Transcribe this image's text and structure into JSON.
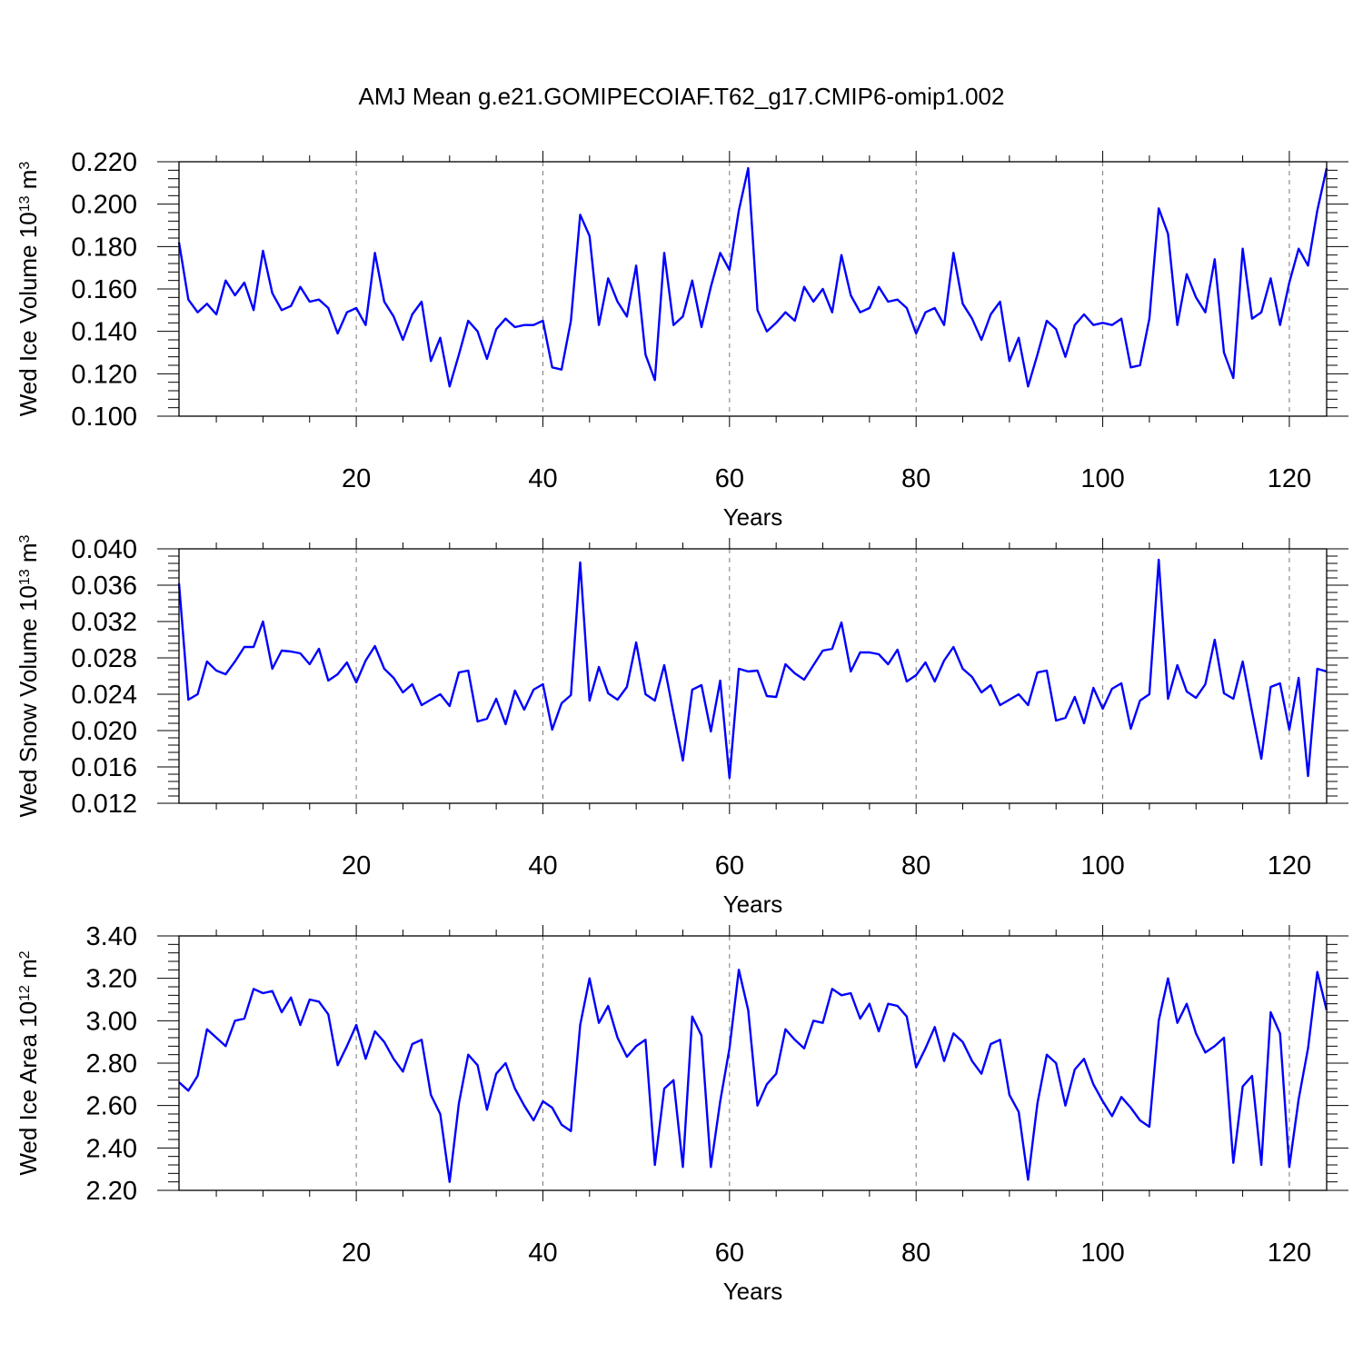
{
  "title": "AMJ Mean g.e21.GOMIPECOIAF.T62_g17.CMIP6-omip1.002",
  "line_color": "#0000ff",
  "chart_data": [
    {
      "type": "line",
      "ylabel": "Wed Ice Volume 10^13 m^3",
      "ylabel_parts": {
        "base": "Wed Ice Volume 10",
        "exp": "13",
        "unit": " m",
        "unit_exp": "3"
      },
      "xlabel": "Years",
      "xlim": [
        1,
        124
      ],
      "ylim": [
        0.1,
        0.22
      ],
      "xticks": [
        20,
        40,
        60,
        80,
        100,
        120
      ],
      "yticks": [
        0.1,
        0.12,
        0.14,
        0.16,
        0.18,
        0.2,
        0.22
      ],
      "ytick_labels": [
        "0.100",
        "0.120",
        "0.140",
        "0.160",
        "0.180",
        "0.200",
        "0.220"
      ],
      "grid": "vertical dashed at major x ticks",
      "series": [
        {
          "values": [
            0.182,
            0.155,
            0.149,
            0.153,
            0.148,
            0.164,
            0.157,
            0.163,
            0.15,
            0.178,
            0.158,
            0.15,
            0.152,
            0.161,
            0.154,
            0.155,
            0.151,
            0.139,
            0.149,
            0.151,
            0.143,
            0.177,
            0.154,
            0.147,
            0.136,
            0.148,
            0.154,
            0.126,
            0.137,
            0.114,
            0.129,
            0.145,
            0.14,
            0.127,
            0.141,
            0.146,
            0.142,
            0.143,
            0.143,
            0.145,
            0.123,
            0.122,
            0.145,
            0.195,
            0.185,
            0.143,
            0.165,
            0.154,
            0.147,
            0.171,
            0.129,
            0.117,
            0.177,
            0.143,
            0.147,
            0.164,
            0.142,
            0.161,
            0.177,
            0.169,
            0.197,
            0.217,
            0.15,
            0.14,
            0.144,
            0.149,
            0.145,
            0.161,
            0.154,
            0.16,
            0.149,
            0.176,
            0.157,
            0.149,
            0.151,
            0.161,
            0.154,
            0.155,
            0.151,
            0.139,
            0.149,
            0.151,
            0.143,
            0.177,
            0.153,
            0.146,
            0.136,
            0.148,
            0.154,
            0.126,
            0.137,
            0.114,
            0.129,
            0.145,
            0.141,
            0.128,
            0.143,
            0.148,
            0.143,
            0.144,
            0.143,
            0.146,
            0.123,
            0.124,
            0.146,
            0.198,
            0.186,
            0.143,
            0.167,
            0.156,
            0.149,
            0.174,
            0.13,
            0.118,
            0.179,
            0.146,
            0.149,
            0.165,
            0.143,
            0.163,
            0.179,
            0.171,
            0.197,
            0.217
          ]
        }
      ]
    },
    {
      "type": "line",
      "ylabel": "Wed Snow Volume 10^13 m^3",
      "ylabel_parts": {
        "base": "Wed Snow Volume 10",
        "exp": "13",
        "unit": " m",
        "unit_exp": "3"
      },
      "xlabel": "Years",
      "xlim": [
        1,
        124
      ],
      "ylim": [
        0.012,
        0.04
      ],
      "xticks": [
        20,
        40,
        60,
        80,
        100,
        120
      ],
      "yticks": [
        0.012,
        0.016,
        0.02,
        0.024,
        0.028,
        0.032,
        0.036,
        0.04
      ],
      "ytick_labels": [
        "0.012",
        "0.016",
        "0.020",
        "0.024",
        "0.028",
        "0.032",
        "0.036",
        "0.040"
      ],
      "grid": "vertical dashed at major x ticks",
      "series": [
        {
          "values": [
            0.0362,
            0.0234,
            0.024,
            0.0276,
            0.0266,
            0.0262,
            0.0276,
            0.0292,
            0.0292,
            0.032,
            0.0268,
            0.0288,
            0.0287,
            0.0285,
            0.0273,
            0.029,
            0.0255,
            0.0262,
            0.0275,
            0.0253,
            0.0277,
            0.0293,
            0.0268,
            0.0258,
            0.0242,
            0.0251,
            0.0228,
            0.0234,
            0.024,
            0.0227,
            0.0264,
            0.0266,
            0.021,
            0.0213,
            0.0235,
            0.0207,
            0.0244,
            0.0223,
            0.0245,
            0.0251,
            0.0201,
            0.023,
            0.0239,
            0.0385,
            0.0233,
            0.027,
            0.0241,
            0.0234,
            0.0248,
            0.0297,
            0.024,
            0.0233,
            0.0272,
            0.0219,
            0.0167,
            0.0245,
            0.025,
            0.0199,
            0.0255,
            0.0148,
            0.0268,
            0.0265,
            0.0266,
            0.0238,
            0.0237,
            0.0273,
            0.0263,
            0.0256,
            0.0272,
            0.0288,
            0.029,
            0.0319,
            0.0265,
            0.0286,
            0.0286,
            0.0284,
            0.0273,
            0.0289,
            0.0254,
            0.0261,
            0.0275,
            0.0254,
            0.0277,
            0.0292,
            0.0268,
            0.0259,
            0.0242,
            0.025,
            0.0228,
            0.0234,
            0.024,
            0.0228,
            0.0264,
            0.0266,
            0.0211,
            0.0214,
            0.0237,
            0.0208,
            0.0247,
            0.0224,
            0.0246,
            0.0252,
            0.0202,
            0.0233,
            0.024,
            0.0388,
            0.0235,
            0.0272,
            0.0243,
            0.0236,
            0.0251,
            0.03,
            0.0241,
            0.0235,
            0.0276,
            0.0221,
            0.0169,
            0.0248,
            0.0252,
            0.0201,
            0.0258,
            0.015,
            0.0268,
            0.0265
          ]
        }
      ]
    },
    {
      "type": "line",
      "ylabel": "Wed Ice Area 10^12 m^2",
      "ylabel_parts": {
        "base": "Wed Ice Area 10",
        "exp": "12",
        "unit": " m",
        "unit_exp": "2"
      },
      "xlabel": "Years",
      "xlim": [
        1,
        124
      ],
      "ylim": [
        2.2,
        3.4
      ],
      "xticks": [
        20,
        40,
        60,
        80,
        100,
        120
      ],
      "yticks": [
        2.2,
        2.4,
        2.6,
        2.8,
        3.0,
        3.2,
        3.4
      ],
      "ytick_labels": [
        "2.20",
        "2.40",
        "2.60",
        "2.80",
        "3.00",
        "3.20",
        "3.40"
      ],
      "grid": "vertical dashed at major x ticks",
      "series": [
        {
          "values": [
            2.71,
            2.67,
            2.74,
            2.96,
            2.92,
            2.88,
            3.0,
            3.01,
            3.15,
            3.13,
            3.14,
            3.04,
            3.11,
            2.98,
            3.1,
            3.09,
            3.03,
            2.79,
            2.88,
            2.98,
            2.82,
            2.95,
            2.9,
            2.82,
            2.76,
            2.89,
            2.91,
            2.65,
            2.56,
            2.24,
            2.61,
            2.84,
            2.79,
            2.58,
            2.75,
            2.8,
            2.68,
            2.6,
            2.53,
            2.62,
            2.59,
            2.51,
            2.48,
            2.98,
            3.2,
            2.99,
            3.07,
            2.92,
            2.83,
            2.88,
            2.91,
            2.32,
            2.68,
            2.72,
            2.31,
            3.02,
            2.93,
            2.31,
            2.62,
            2.87,
            3.24,
            3.05,
            2.6,
            2.7,
            2.75,
            2.96,
            2.91,
            2.87,
            3.0,
            2.99,
            3.15,
            3.12,
            3.13,
            3.01,
            3.08,
            2.95,
            3.08,
            3.07,
            3.02,
            2.78,
            2.87,
            2.97,
            2.81,
            2.94,
            2.9,
            2.81,
            2.75,
            2.89,
            2.91,
            2.65,
            2.57,
            2.25,
            2.61,
            2.84,
            2.8,
            2.6,
            2.77,
            2.82,
            2.7,
            2.62,
            2.55,
            2.64,
            2.59,
            2.53,
            2.5,
            3.0,
            3.2,
            2.99,
            3.08,
            2.94,
            2.85,
            2.88,
            2.92,
            2.33,
            2.69,
            2.74,
            2.32,
            3.04,
            2.94,
            2.31,
            2.63,
            2.87,
            3.23,
            3.05
          ]
        }
      ]
    }
  ]
}
